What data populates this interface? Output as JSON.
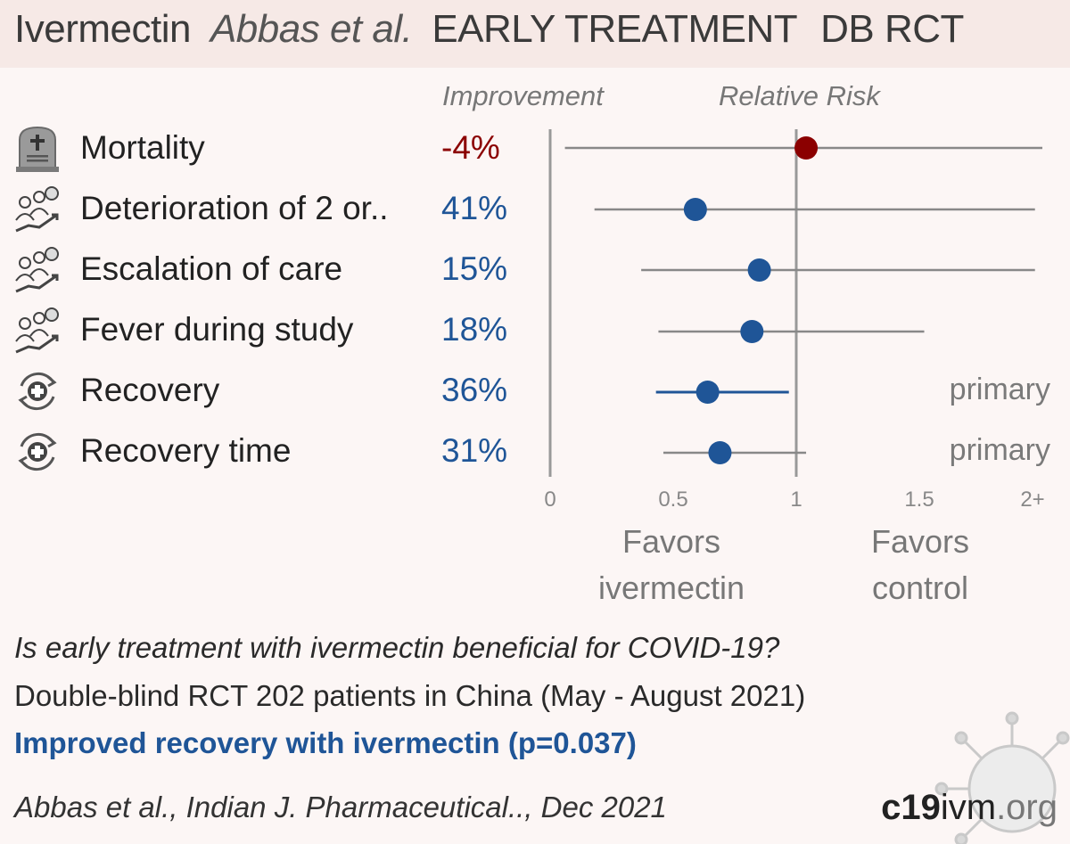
{
  "header": {
    "drug": "Ivermectin",
    "author": "Abbas et al.",
    "stage": "EARLY TREATMENT",
    "design": "DB RCT"
  },
  "columns": {
    "improvement": "Improvement",
    "relative_risk": "Relative Risk"
  },
  "rows": [
    {
      "icon": "tombstone-icon",
      "label": "Mortality",
      "improvement": "-4%",
      "color": "#8b0000",
      "note": ""
    },
    {
      "icon": "patients-icon",
      "label": "Deterioration of 2 or..",
      "improvement": "41%",
      "color": "#1f5597",
      "note": ""
    },
    {
      "icon": "patients-icon",
      "label": "Escalation of care",
      "improvement": "15%",
      "color": "#1f5597",
      "note": ""
    },
    {
      "icon": "patients-icon",
      "label": "Fever during study",
      "improvement": "18%",
      "color": "#1f5597",
      "note": ""
    },
    {
      "icon": "recovery-icon",
      "label": "Recovery",
      "improvement": "36%",
      "color": "#1f5597",
      "note": "primary"
    },
    {
      "icon": "recovery-icon",
      "label": "Recovery time",
      "improvement": "31%",
      "color": "#1f5597",
      "note": "primary"
    }
  ],
  "chart_data": {
    "type": "forest",
    "x_ticks": [
      "0",
      "0.5",
      "1",
      "1.5",
      "2+"
    ],
    "xlim": [
      0,
      2
    ],
    "reference_line": 1,
    "points": [
      {
        "outcome": "Mortality",
        "rr": 1.04,
        "ci_low": 0.06,
        "ci_high": 2.0,
        "color": "#8b0000"
      },
      {
        "outcome": "Deterioration of 2 or..",
        "rr": 0.59,
        "ci_low": 0.18,
        "ci_high": 1.97,
        "color": "#1f5597"
      },
      {
        "outcome": "Escalation of care",
        "rr": 0.85,
        "ci_low": 0.37,
        "ci_high": 1.97,
        "color": "#1f5597"
      },
      {
        "outcome": "Fever during study",
        "rr": 0.82,
        "ci_low": 0.44,
        "ci_high": 1.52,
        "color": "#1f5597"
      },
      {
        "outcome": "Recovery",
        "rr": 0.64,
        "ci_low": 0.43,
        "ci_high": 0.97,
        "color": "#1f5597"
      },
      {
        "outcome": "Recovery time",
        "rr": 0.69,
        "ci_low": 0.46,
        "ci_high": 1.04,
        "color": "#1f5597"
      }
    ],
    "favors_left": "Favors ivermectin",
    "favors_right": "Favors control"
  },
  "favors": {
    "left_line1": "Favors",
    "left_line2": "ivermectin",
    "right_line1": "Favors",
    "right_line2": "control"
  },
  "footer": {
    "question": "Is early treatment with ivermectin beneficial for COVID-19?",
    "design": "Double-blind RCT 202 patients in China (May - August 2021)",
    "conclusion": "Improved recovery with ivermectin (p=0.037)",
    "citation": "Abbas et al., Indian J. Pharmaceutical.., Dec 2021",
    "brand_bold": "c19",
    "brand_mid": "ivm",
    "brand_tail": ".org"
  }
}
